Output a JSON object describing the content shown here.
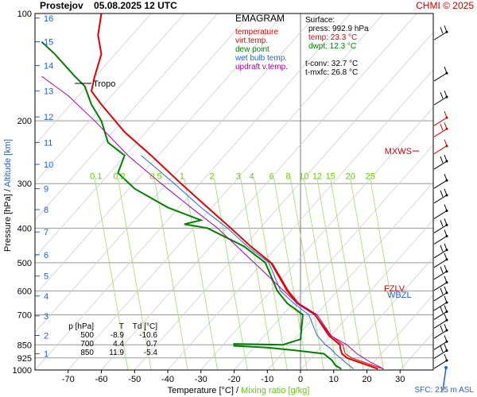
{
  "header": {
    "title": "Prostejov    05.08.2025 12 UTC",
    "credit": "CHMI © 2025"
  },
  "legend": {
    "title": "EMAGRAM",
    "items": [
      {
        "label": "temperature",
        "color": "#e00000"
      },
      {
        "label": "virt.temp.",
        "color": "#e00000"
      },
      {
        "label": "dew point",
        "color": "#008000"
      },
      {
        "label": "wet bulb temp.",
        "color": "#2266dd"
      },
      {
        "label": "updraft v.temp.",
        "color": "#aa00aa"
      }
    ]
  },
  "surface": {
    "title": "Surface:",
    "lines": [
      {
        "text": "press: 992.9 hPa",
        "color": "#000000"
      },
      {
        "text": "temp: 23.3 °C",
        "color": "#e00000"
      },
      {
        "text": "dwpt: 12.3 °C",
        "color": "#008000"
      },
      {
        "text": "",
        "color": "#000000"
      },
      {
        "text": "t-conv: 32.7 °C",
        "color": "#000000"
      },
      {
        "text": "t-mxfc: 26.8 °C",
        "color": "#000000"
      }
    ]
  },
  "table": {
    "headers": [
      "p [hPa]",
      "T",
      "Td [°C]"
    ],
    "rows": [
      [
        "500",
        "-8.9",
        "-10.6"
      ],
      [
        "700",
        "4.4",
        "0.7"
      ],
      [
        "850",
        "11.9",
        "-5.4"
      ]
    ]
  },
  "axes": {
    "xlabel_main": "Temperature [°C]  /  ",
    "xlabel_mix": "Mixing ratio [g/kg]",
    "ylabel_main": "Pressure [hPa]  /  ",
    "ylabel_km": "Altitude [km]",
    "sfc_label": "SFC: 215 m ASL",
    "tropo_label": "Tropo",
    "mxws_label": "MXWS",
    "fzlv_label": "FZLV",
    "wbzl_label": "WBZL"
  },
  "chart_data": {
    "type": "line",
    "title": "Prostejov    05.08.2025 12 UTC",
    "xlabel": "Temperature [°C]",
    "ylabel": "Pressure [hPa]",
    "xlim": [
      -80,
      40
    ],
    "ylim": [
      1000,
      100
    ],
    "log_y": true,
    "x_ticks": [
      -70,
      -60,
      -50,
      -40,
      -30,
      -20,
      -10,
      0,
      10,
      20,
      30
    ],
    "p_ticks": [
      100,
      200,
      300,
      400,
      500,
      600,
      700,
      850,
      925,
      1000
    ],
    "km_ticks": [
      1,
      2,
      3,
      4,
      5,
      6,
      7,
      8,
      9,
      10,
      11,
      12,
      13,
      14,
      15,
      16
    ],
    "mixing_ratio_labels": [
      "0.1",
      "0.2",
      "0.5",
      "1",
      "2",
      "3",
      "4",
      "6",
      "8",
      "10",
      "12",
      "15",
      "20",
      "25"
    ],
    "series": [
      {
        "name": "temperature",
        "color": "#e00000",
        "points": [
          [
            23.3,
            993
          ],
          [
            21,
            975
          ],
          [
            17.5,
            950
          ],
          [
            14,
            925
          ],
          [
            12.5,
            900
          ],
          [
            12,
            870
          ],
          [
            11.9,
            850
          ],
          [
            8.5,
            800
          ],
          [
            4.4,
            700
          ],
          [
            -1,
            650
          ],
          [
            -4,
            600
          ],
          [
            -8.9,
            500
          ],
          [
            -15,
            450
          ],
          [
            -21,
            400
          ],
          [
            -28,
            350
          ],
          [
            -36,
            300
          ],
          [
            -45,
            250
          ],
          [
            -53,
            215
          ],
          [
            -60,
            180
          ],
          [
            -63,
            165
          ],
          [
            -62,
            150
          ],
          [
            -60,
            130
          ],
          [
            -61,
            115
          ],
          [
            -60,
            100
          ]
        ]
      },
      {
        "name": "virt.temp.",
        "color": "#e00000",
        "points": [
          [
            25,
            993
          ],
          [
            22.5,
            975
          ],
          [
            19,
            950
          ],
          [
            15.5,
            925
          ],
          [
            13.5,
            900
          ],
          [
            13,
            870
          ],
          [
            12.8,
            850
          ],
          [
            9.2,
            800
          ],
          [
            5,
            700
          ],
          [
            -0.5,
            650
          ],
          [
            -3.6,
            600
          ],
          [
            -8.6,
            500
          ]
        ]
      },
      {
        "name": "dew point",
        "color": "#008000",
        "points": [
          [
            12.3,
            993
          ],
          [
            10.5,
            970
          ],
          [
            9.5,
            940
          ],
          [
            7,
            900
          ],
          [
            -2,
            880
          ],
          [
            -10,
            865
          ],
          [
            -20,
            855
          ],
          [
            -20,
            845
          ],
          [
            -5.4,
            850
          ],
          [
            0,
            820
          ],
          [
            0.7,
            700
          ],
          [
            -4,
            650
          ],
          [
            -7,
            600
          ],
          [
            -10.6,
            500
          ],
          [
            -17,
            450
          ],
          [
            -28,
            400
          ],
          [
            -35,
            390
          ],
          [
            -30,
            380
          ],
          [
            -40,
            350
          ],
          [
            -50,
            310
          ],
          [
            -55,
            280
          ],
          [
            -53,
            250
          ],
          [
            -58,
            230
          ],
          [
            -60,
            200
          ],
          [
            -63,
            180
          ],
          [
            -65,
            160
          ],
          [
            -68,
            150
          ],
          [
            -74,
            130
          ],
          [
            -78,
            120
          ]
        ]
      },
      {
        "name": "wet bulb temp.",
        "color": "#2266dd",
        "points": [
          [
            16,
            993
          ],
          [
            14,
            960
          ],
          [
            12,
            925
          ],
          [
            10.5,
            900
          ],
          [
            9,
            870
          ],
          [
            7.5,
            850
          ],
          [
            5,
            800
          ],
          [
            2.5,
            700
          ],
          [
            -2,
            650
          ],
          [
            -6,
            600
          ],
          [
            -9.5,
            500
          ],
          [
            -16,
            450
          ],
          [
            -22,
            400
          ],
          [
            -30,
            350
          ],
          [
            -38,
            300
          ],
          [
            -48,
            250
          ]
        ]
      },
      {
        "name": "updraft v.temp.",
        "color": "#aa00aa",
        "points": [
          [
            25,
            993
          ],
          [
            21,
            950
          ],
          [
            17,
            900
          ],
          [
            14,
            850
          ],
          [
            9,
            800
          ],
          [
            4.5,
            700
          ],
          [
            -1,
            650
          ],
          [
            -5,
            600
          ],
          [
            -14,
            500
          ],
          [
            -25,
            400
          ],
          [
            -33,
            350
          ],
          [
            -42,
            300
          ],
          [
            -52,
            250
          ],
          [
            -62,
            200
          ],
          [
            -70,
            170
          ],
          [
            -78,
            150
          ]
        ]
      }
    ]
  }
}
